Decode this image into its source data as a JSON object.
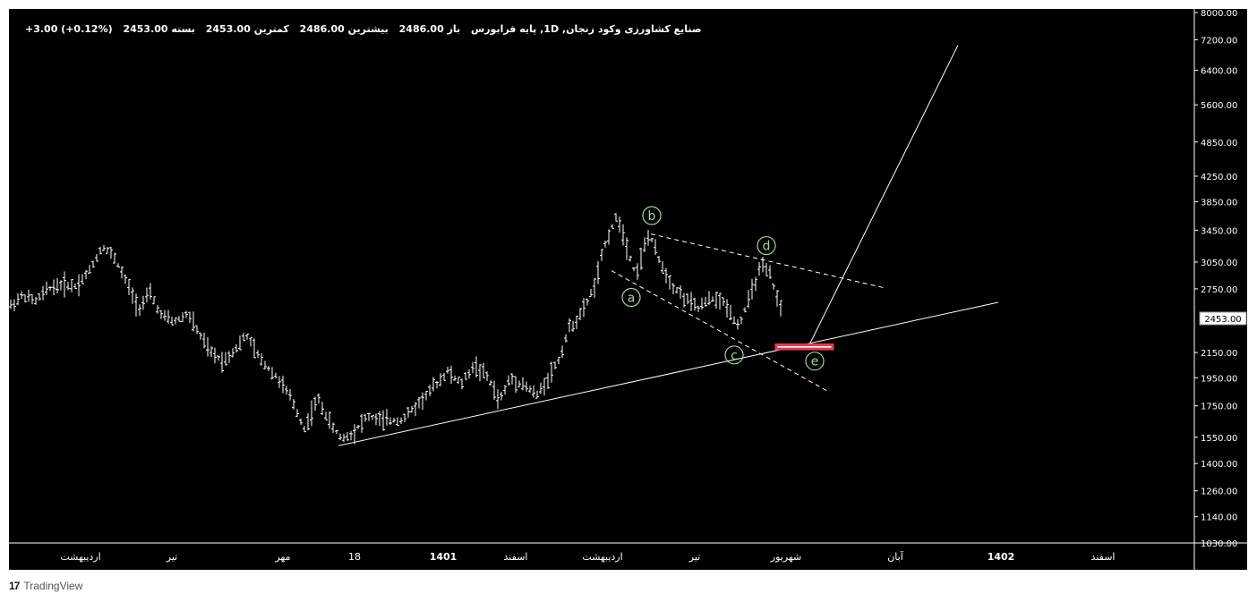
{
  "legend": {
    "title": "صنایع کشاورزی وکود زنجان, 1D, پایه فرابورس",
    "open": "باز 2486.00",
    "high": "بیشترین 2486.00",
    "low": "کمترین 2453.00",
    "close": "بسته 2453.00",
    "change": "+3.00 (+0.12%)"
  },
  "last_price_label": "2453.00",
  "brand": "TradingView",
  "colors": {
    "background": "#000000",
    "bars": "#ffffff",
    "wave_labels": "#9fd6a0",
    "target_zone": "#e53950"
  },
  "chart_data": {
    "type": "ohlc-bar",
    "y_scale": "log",
    "y_ticks": [
      8000,
      7200,
      6400,
      5600,
      4850,
      4250,
      3850,
      3450,
      3050,
      2750,
      2150,
      1950,
      1750,
      1550,
      1400,
      1260,
      1140,
      1030
    ],
    "y_tick_labels": [
      "8000.00",
      "7200.00",
      "6400.00",
      "5600.00",
      "4850.00",
      "4250.00",
      "3850.00",
      "3450.00",
      "3050.00",
      "2750.00",
      "2150.00",
      "1950.00",
      "1750.00",
      "1550.00",
      "1400.00",
      "1260.00",
      "1140.00",
      "1030.00"
    ],
    "x_labels": [
      {
        "text": "اردیبهشت",
        "bold": false
      },
      {
        "text": "تیر",
        "bold": false
      },
      {
        "text": "مهر",
        "bold": false
      },
      {
        "text": "18",
        "bold": false
      },
      {
        "text": "1401",
        "bold": true
      },
      {
        "text": "اسفند",
        "bold": false
      },
      {
        "text": "اردیبهشت",
        "bold": false
      },
      {
        "text": "تیر",
        "bold": false
      },
      {
        "text": "شهریور",
        "bold": false
      },
      {
        "text": "آبان",
        "bold": false
      },
      {
        "text": "1402",
        "bold": true
      },
      {
        "text": "اسفند",
        "bold": false
      }
    ],
    "price_path": [
      [
        0,
        2560
      ],
      [
        15,
        2680
      ],
      [
        30,
        2620
      ],
      [
        45,
        2760
      ],
      [
        60,
        2800
      ],
      [
        75,
        2780
      ],
      [
        90,
        2950
      ],
      [
        105,
        3250
      ],
      [
        118,
        3100
      ],
      [
        132,
        2800
      ],
      [
        145,
        2550
      ],
      [
        158,
        2700
      ],
      [
        170,
        2480
      ],
      [
        185,
        2420
      ],
      [
        200,
        2500
      ],
      [
        213,
        2300
      ],
      [
        225,
        2150
      ],
      [
        240,
        2080
      ],
      [
        255,
        2200
      ],
      [
        265,
        2300
      ],
      [
        280,
        2100
      ],
      [
        300,
        1950
      ],
      [
        315,
        1800
      ],
      [
        330,
        1600
      ],
      [
        345,
        1800
      ],
      [
        360,
        1620
      ],
      [
        372,
        1540
      ],
      [
        385,
        1580
      ],
      [
        400,
        1680
      ],
      [
        420,
        1650
      ],
      [
        440,
        1660
      ],
      [
        455,
        1750
      ],
      [
        470,
        1850
      ],
      [
        490,
        2000
      ],
      [
        505,
        1900
      ],
      [
        520,
        2050
      ],
      [
        535,
        1950
      ],
      [
        548,
        1780
      ],
      [
        560,
        1950
      ],
      [
        575,
        1900
      ],
      [
        590,
        1820
      ],
      [
        602,
        1950
      ],
      [
        615,
        2100
      ],
      [
        625,
        2350
      ],
      [
        640,
        2500
      ],
      [
        655,
        2800
      ],
      [
        668,
        3350
      ],
      [
        680,
        3650
      ],
      [
        690,
        3250
      ],
      [
        700,
        2900
      ],
      [
        715,
        3400
      ],
      [
        725,
        3100
      ],
      [
        740,
        2800
      ],
      [
        755,
        2650
      ],
      [
        770,
        2550
      ],
      [
        785,
        2650
      ],
      [
        800,
        2600
      ],
      [
        815,
        2380
      ],
      [
        825,
        2600
      ],
      [
        840,
        3000
      ],
      [
        850,
        2900
      ],
      [
        858,
        2650
      ],
      [
        865,
        2500
      ]
    ],
    "wave_labels": [
      {
        "text": "a",
        "x": 695,
        "y": 2660
      },
      {
        "text": "b",
        "x": 718,
        "y": 3650
      },
      {
        "text": "c",
        "x": 810,
        "y": 2130
      },
      {
        "text": "d",
        "x": 846,
        "y": 3250
      },
      {
        "text": "e",
        "x": 900,
        "y": 2080
      }
    ],
    "trend_lines": [
      {
        "style": "solid",
        "from": [
          368,
          1500
        ],
        "to": [
          1105,
          2610
        ]
      },
      {
        "style": "dashed",
        "from": [
          717,
          3400
        ],
        "to": [
          978,
          2760
        ]
      },
      {
        "style": "dashed",
        "from": [
          673,
          2950
        ],
        "to": [
          915,
          1850
        ]
      },
      {
        "style": "solid",
        "from": [
          893,
          2200
        ],
        "to": [
          1060,
          7050
        ]
      }
    ],
    "target_zone": {
      "x_start": 857,
      "x_end": 920,
      "low": 2180,
      "high": 2215
    }
  }
}
